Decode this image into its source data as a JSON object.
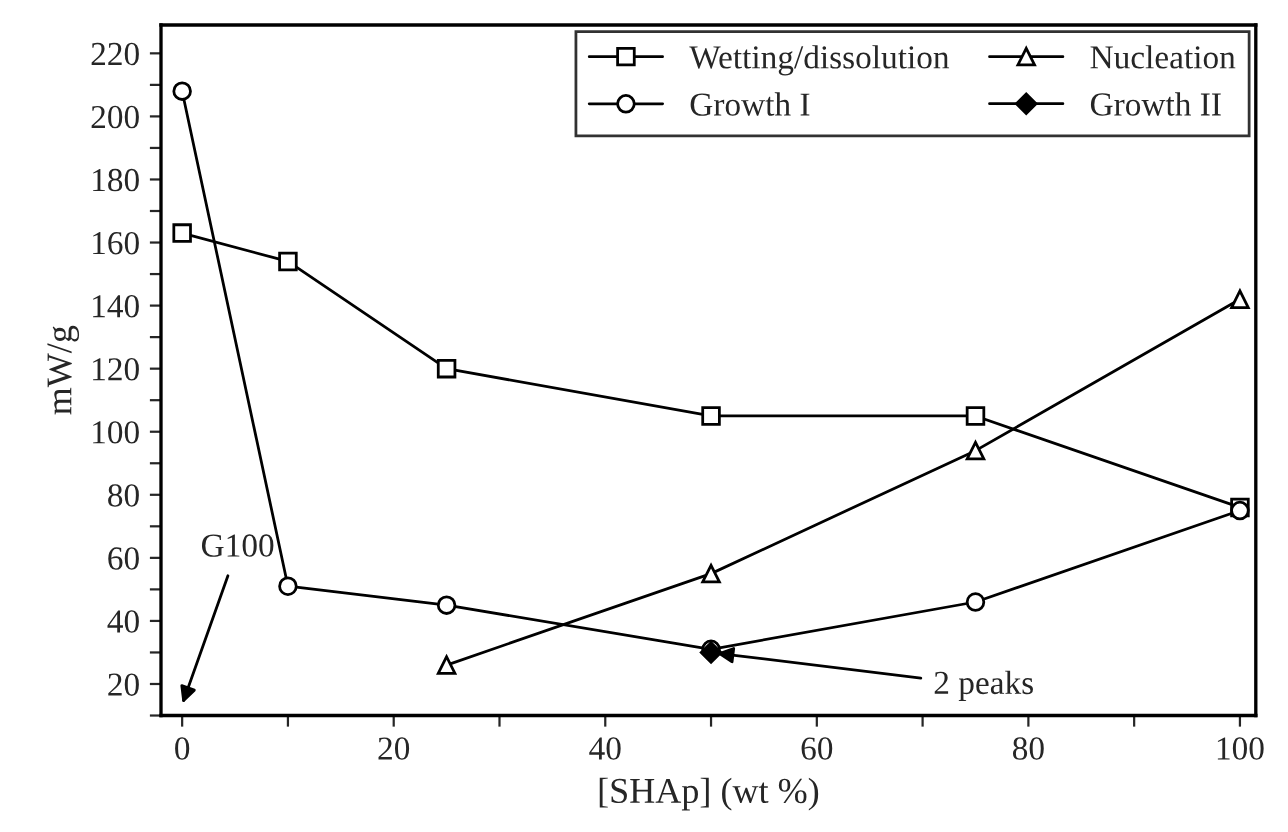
{
  "chart_data": {
    "type": "line",
    "xlabel": "[SHAp] (wt %)",
    "ylabel": "mW/g",
    "xlim": [
      -2,
      101.5
    ],
    "ylim": [
      10,
      229
    ],
    "xticks": [
      0,
      {
        "value": 10,
        "label": null
      },
      20,
      {
        "value": 30,
        "label": null
      },
      40,
      {
        "value": 50,
        "label": null
      },
      60,
      {
        "value": 70,
        "label": null
      },
      80,
      {
        "value": 90,
        "label": null
      },
      100
    ],
    "yticks": [
      {
        "value": 10,
        "label": null
      },
      20,
      {
        "value": 30,
        "label": null
      },
      40,
      {
        "value": 50,
        "label": null
      },
      60,
      {
        "value": 70,
        "label": null
      },
      80,
      {
        "value": 90,
        "label": null
      },
      100,
      {
        "value": 110,
        "label": null
      },
      120,
      {
        "value": 130,
        "label": null
      },
      140,
      {
        "value": 150,
        "label": null
      },
      160,
      {
        "value": 170,
        "label": null
      },
      180,
      {
        "value": 190,
        "label": null
      },
      200,
      {
        "value": 210,
        "label": null
      },
      220
    ],
    "legend": "top right",
    "grid": false,
    "line_style": "solid",
    "series": [
      {
        "name": "Wetting/dissolution",
        "color": "#000000",
        "marker": "square",
        "x": [
          0,
          10,
          25,
          50,
          75,
          100
        ],
        "values": [
          163,
          154,
          120,
          105,
          105,
          76
        ]
      },
      {
        "name": "Growth I",
        "color": "#000000",
        "marker": "circle",
        "x": [
          0,
          10,
          25,
          50,
          75,
          100
        ],
        "values": [
          208,
          51,
          45,
          31,
          46,
          75
        ]
      },
      {
        "name": "Nucleation",
        "color": "#000000",
        "marker": "triangle",
        "x": [
          25,
          50,
          75,
          100
        ],
        "values": [
          26,
          55,
          94,
          142
        ]
      },
      {
        "name": "Growth II",
        "color": "#000000",
        "marker": "diamond",
        "x": [
          50
        ],
        "values": [
          30
        ]
      }
    ],
    "annotations": [
      "G100",
      {
        "text": "2 peaks",
        "x": 50,
        "y": 30
      }
    ]
  }
}
